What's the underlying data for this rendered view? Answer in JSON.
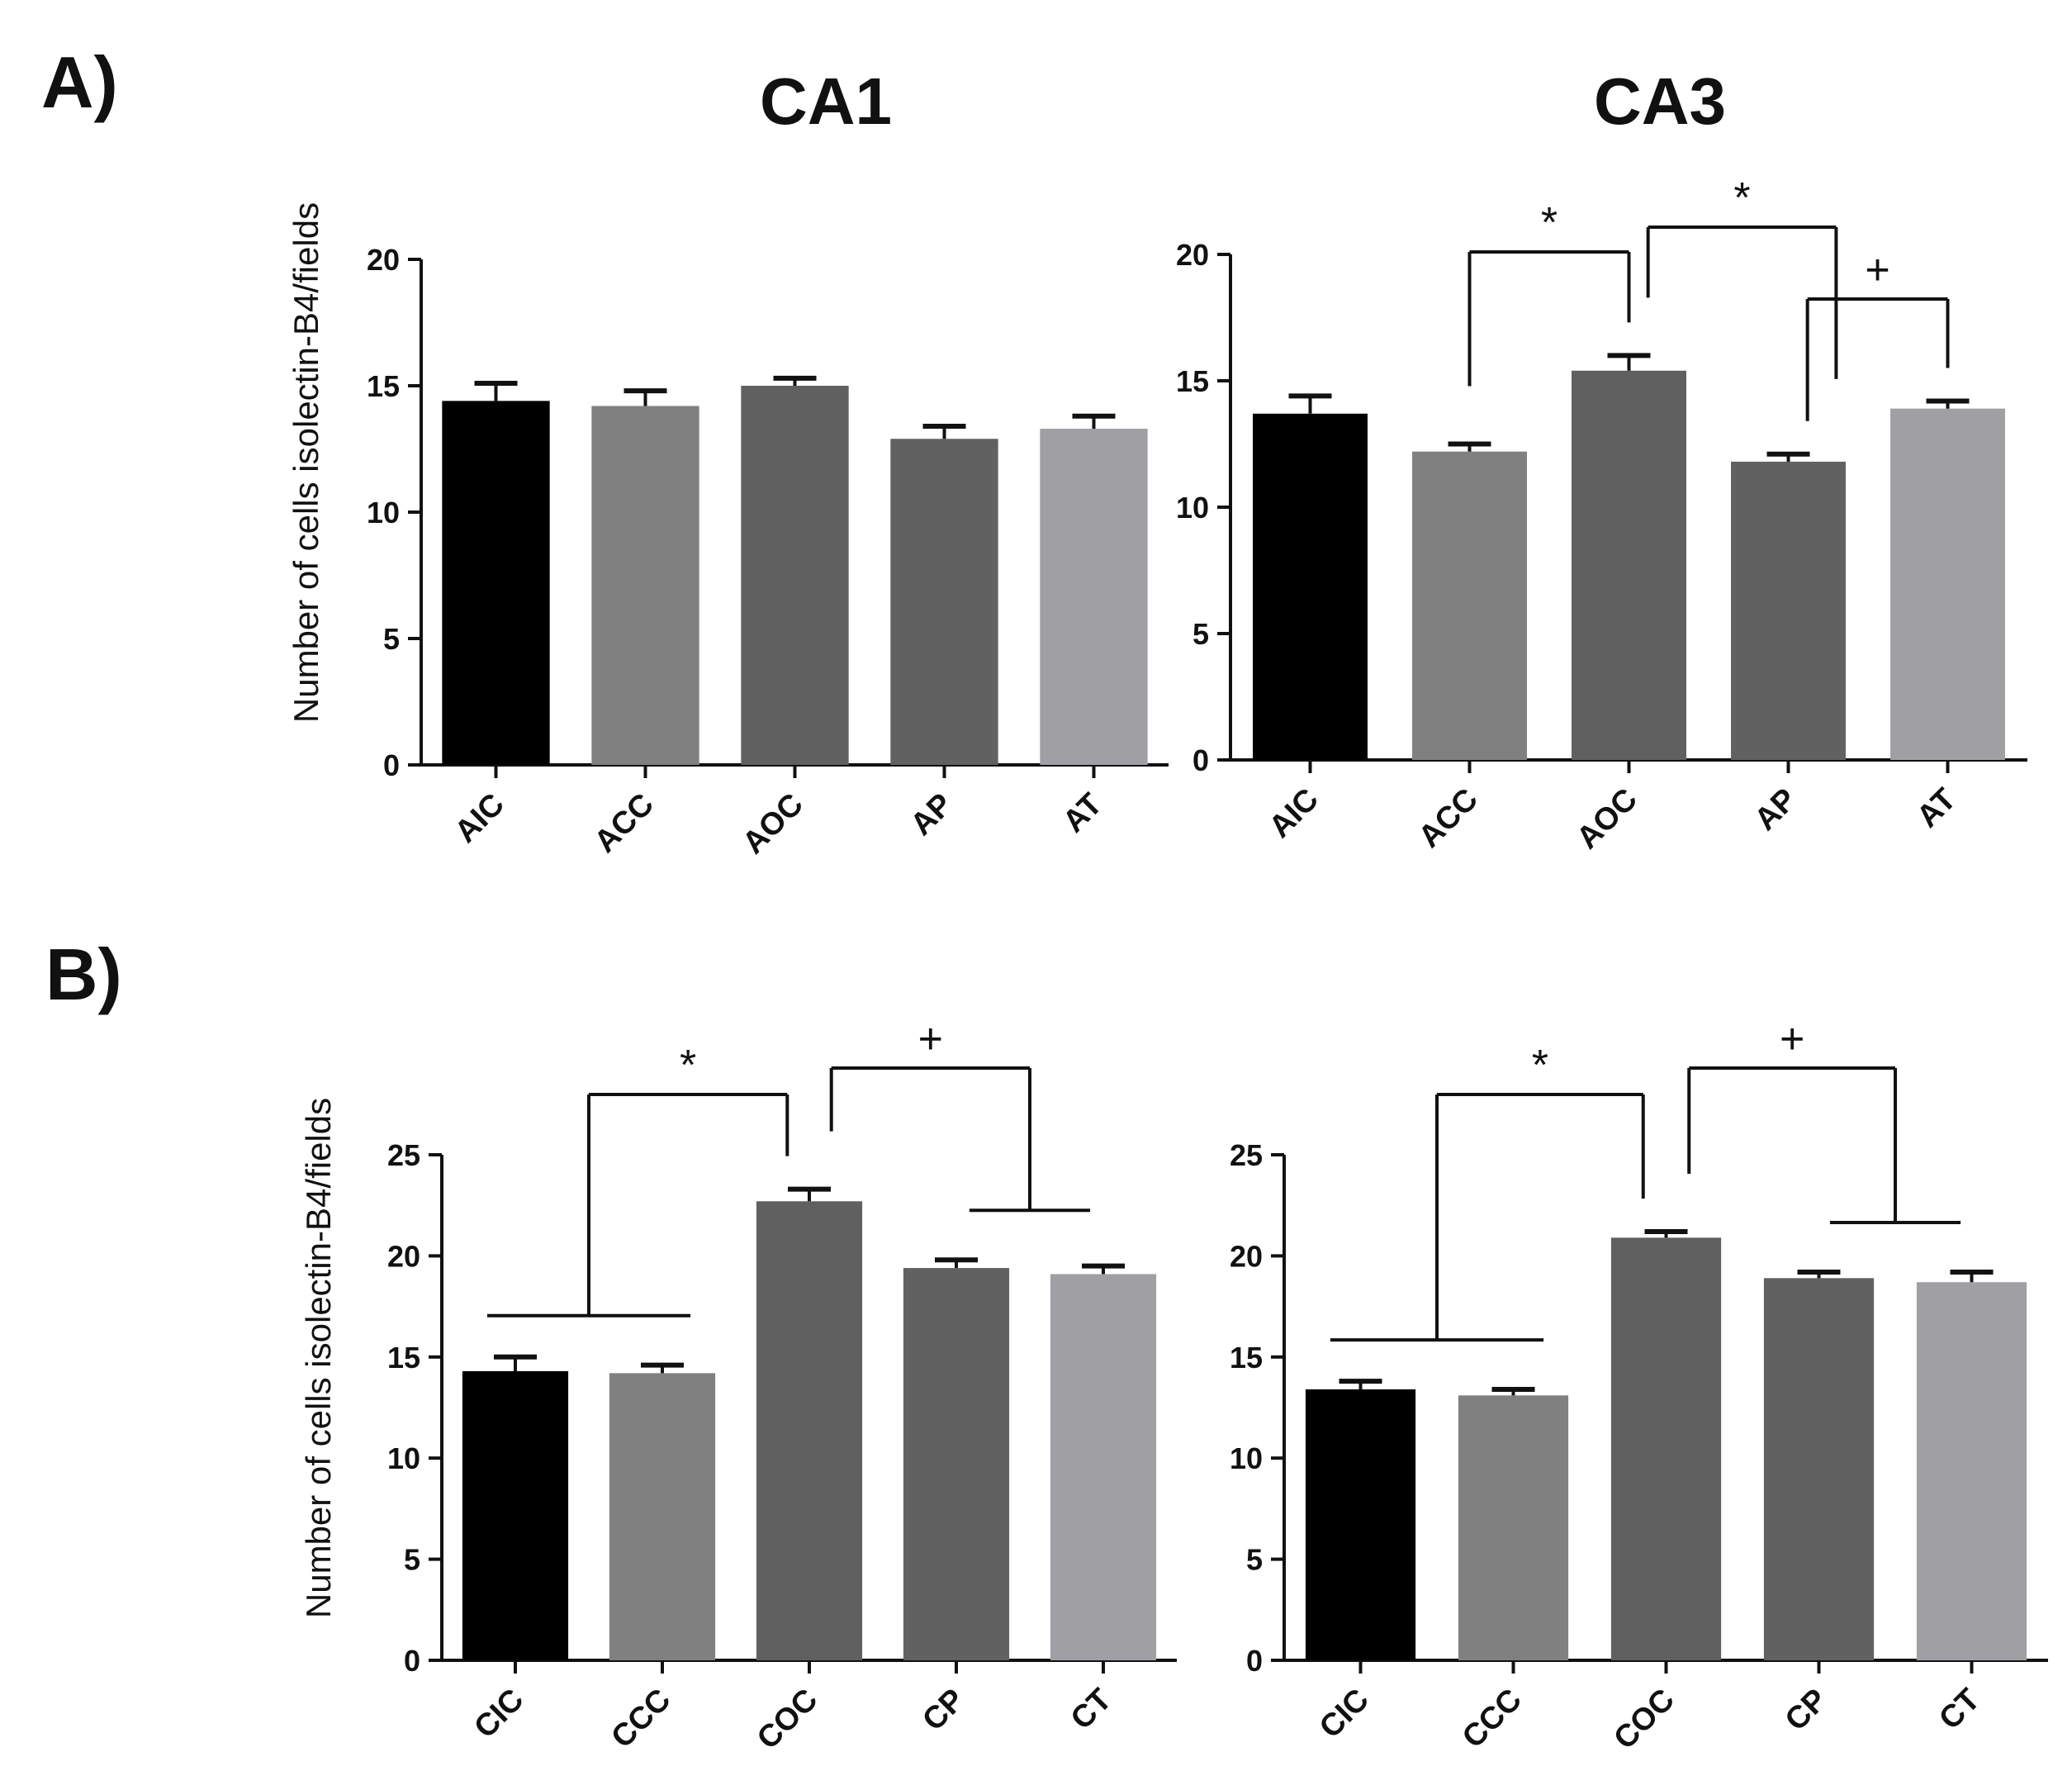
{
  "panel_labels": [
    "A)",
    "B)"
  ],
  "column_titles": [
    "CA1",
    "CA3"
  ],
  "ylabel": "Number of cells isolectin-B4/fields",
  "colors": {
    "bar_1": "#000000",
    "bar_2": "#808080",
    "bar_3": "#606060",
    "bar_4": "#616161",
    "bar_5": "#a0a0a4",
    "axis": "#111111"
  },
  "chart_data": [
    {
      "type": "bar",
      "title": "CA1",
      "panel": "A)",
      "categories": [
        "AIC",
        "ACC",
        "AOC",
        "AP",
        "AT"
      ],
      "values": [
        14.4,
        14.2,
        15.0,
        12.9,
        13.3
      ],
      "errors": [
        0.7,
        0.6,
        0.3,
        0.5,
        0.5
      ],
      "ylabel": "Number of cells isolectin-B4/fields",
      "ylim": [
        0,
        20
      ],
      "yticks": [
        0,
        5,
        10,
        15,
        20
      ],
      "significance": []
    },
    {
      "type": "bar",
      "title": "CA3",
      "panel": "A)",
      "categories": [
        "AIC",
        "ACC",
        "AOC",
        "AP",
        "AT"
      ],
      "values": [
        13.7,
        12.2,
        15.4,
        11.8,
        13.9
      ],
      "errors": [
        0.7,
        0.3,
        0.6,
        0.3,
        0.3
      ],
      "ylabel": "",
      "ylim": [
        0,
        20
      ],
      "yticks": [
        0,
        5,
        10,
        15,
        20
      ],
      "significance": [
        {
          "symbol": "*",
          "from": [
            "ACC"
          ],
          "to": [
            "AOC"
          ]
        },
        {
          "symbol": "*",
          "from": [
            "AOC"
          ],
          "to": [
            "AP"
          ]
        },
        {
          "symbol": "+",
          "from": [
            "AP"
          ],
          "to": [
            "AT"
          ]
        }
      ]
    },
    {
      "type": "bar",
      "title": "",
      "panel": "B)",
      "categories": [
        "CIC",
        "CCC",
        "COC",
        "CP",
        "CT"
      ],
      "values": [
        14.3,
        14.2,
        22.7,
        19.4,
        19.1
      ],
      "errors": [
        0.7,
        0.4,
        0.6,
        0.4,
        0.4
      ],
      "ylabel": "Number of cells isolectin-B4/fields",
      "ylim": [
        0,
        25
      ],
      "yticks": [
        0,
        5,
        10,
        15,
        20,
        25
      ],
      "significance": [
        {
          "symbol": "*",
          "from": [
            "CIC",
            "CCC"
          ],
          "to": [
            "COC"
          ]
        },
        {
          "symbol": "+",
          "from": [
            "COC"
          ],
          "to": [
            "CP",
            "CT"
          ]
        }
      ]
    },
    {
      "type": "bar",
      "title": "",
      "panel": "B)",
      "categories": [
        "CIC",
        "CCC",
        "COC",
        "CP",
        "CT"
      ],
      "values": [
        13.4,
        13.1,
        20.9,
        18.9,
        18.7
      ],
      "errors": [
        0.4,
        0.3,
        0.3,
        0.3,
        0.5
      ],
      "ylabel": "",
      "ylim": [
        0,
        25
      ],
      "yticks": [
        0,
        5,
        10,
        15,
        20,
        25
      ],
      "significance": [
        {
          "symbol": "*",
          "from": [
            "CIC",
            "CCC"
          ],
          "to": [
            "COC"
          ]
        },
        {
          "symbol": "+",
          "from": [
            "COC"
          ],
          "to": [
            "CP",
            "CT"
          ]
        }
      ]
    }
  ]
}
